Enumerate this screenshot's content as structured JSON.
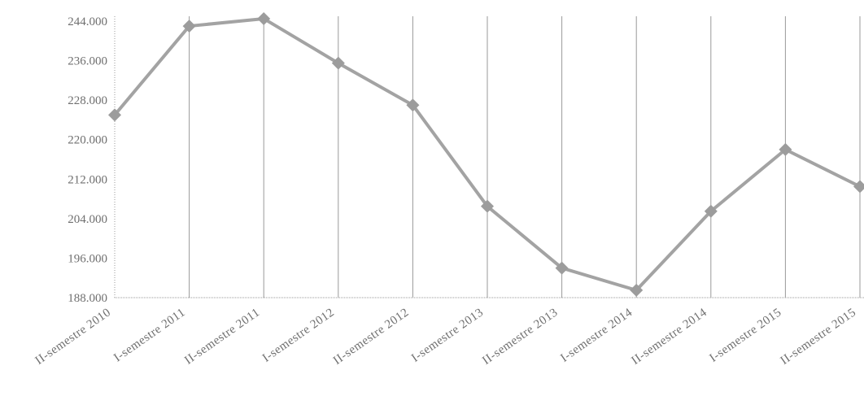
{
  "chart_data": {
    "type": "line",
    "title": "",
    "xlabel": "",
    "ylabel": "",
    "categories": [
      "II-semestre 2010",
      "I-semestre 2011",
      "II-semestre 2011",
      "I-semestre 2012",
      "II-semestre 2012",
      "I-semestre 2013",
      "II-semestre 2013",
      "I-semestre 2014",
      "II-semestre 2014",
      "I-semestre 2015",
      "II-semestre 2015"
    ],
    "series": [
      {
        "values": [
          225000,
          243000,
          244500,
          235500,
          227000,
          206500,
          194000,
          189500,
          205500,
          218000,
          210500
        ]
      }
    ],
    "ylim": [
      188000,
      244000
    ],
    "yticks": [
      "188.000",
      "196.000",
      "204.000",
      "212.000",
      "220.000",
      "228.000",
      "236.000",
      "244.000"
    ],
    "ytick_values": [
      188000,
      196000,
      204000,
      212000,
      220000,
      228000,
      236000,
      244000
    ],
    "grid": "vertical",
    "legend": "none",
    "colors": {
      "line": "#a3a3a3",
      "marker": "#9c9c9c",
      "grid": "#9a9a9a",
      "text": "#6f6f6f"
    }
  }
}
